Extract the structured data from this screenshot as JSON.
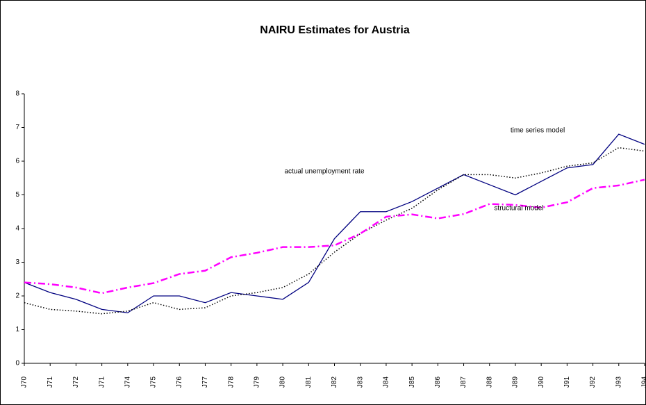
{
  "chart_data": {
    "type": "line",
    "title": "NAIRU Estimates for Austria",
    "categories": [
      "J70",
      "J71",
      "J72",
      "J71",
      "J74",
      "J75",
      "J76",
      "J77",
      "J78",
      "J79",
      "J80",
      "J81",
      "J82",
      "J83",
      "J84",
      "J85",
      "J86",
      "J87",
      "J88",
      "J89",
      "J90",
      "J91",
      "J92",
      "J93",
      "J94"
    ],
    "series": [
      {
        "name": "actual unemployment rate",
        "color": "#000080",
        "style": "solid",
        "values": [
          2.4,
          2.1,
          1.9,
          1.6,
          1.5,
          2.0,
          2.0,
          1.8,
          2.1,
          2.0,
          1.9,
          2.4,
          3.7,
          4.5,
          4.5,
          4.8,
          5.2,
          5.6,
          5.3,
          5.0,
          5.4,
          5.8,
          5.9,
          6.8,
          6.5
        ]
      },
      {
        "name": "time series model",
        "color": "#000000",
        "style": "dotted",
        "values": [
          1.8,
          1.6,
          1.55,
          1.47,
          1.55,
          1.8,
          1.6,
          1.65,
          2.0,
          2.1,
          2.25,
          2.65,
          3.3,
          3.85,
          4.25,
          4.6,
          5.15,
          5.6,
          5.6,
          5.5,
          5.65,
          5.85,
          5.95,
          6.4,
          6.3
        ]
      },
      {
        "name": "structural model",
        "color": "#ff00ff",
        "style": "dashdot",
        "values": [
          2.4,
          2.35,
          2.25,
          2.08,
          2.25,
          2.38,
          2.65,
          2.75,
          3.15,
          3.28,
          3.45,
          3.45,
          3.5,
          3.85,
          4.35,
          4.42,
          4.3,
          4.43,
          4.73,
          4.7,
          4.62,
          4.78,
          5.2,
          5.28,
          5.45
        ]
      }
    ],
    "ylim": [
      0,
      8
    ],
    "yticks": [
      0,
      1,
      2,
      3,
      4,
      5,
      6,
      7,
      8
    ],
    "grid": false
  }
}
